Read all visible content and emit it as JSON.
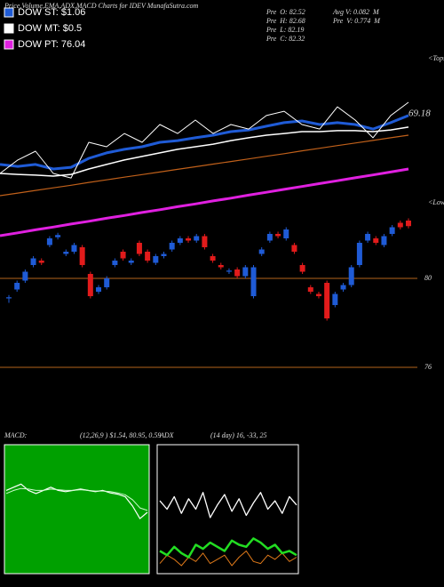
{
  "title": "Price,Volume,EMA,ADX,MACD Charts for IDEV MunafaSutra.com",
  "legend": [
    {
      "label": "DOW ST: $1.06",
      "color": "#1f5bd6"
    },
    {
      "label": "DOW MT: $0.5",
      "color": "#ffffff"
    },
    {
      "label": "DOW PT: 76.04",
      "color": "#e020e0"
    }
  ],
  "info": [
    "Pre  O: 82.52",
    "Pre  H: 82.68",
    "Pre  L: 82.19",
    "Pre  C: 82.32",
    "Avg V: 0.082  M",
    "Pre  V: 0.774  M"
  ],
  "chart_data": [
    {
      "type": "line",
      "ylim": [
        0,
        100
      ],
      "annotations": [
        "<Tops",
        "<Lows",
        "69.18"
      ],
      "series": [
        {
          "color": "#e020e0",
          "width": 3,
          "values": [
            2.4,
            3.9,
            5.5,
            7,
            8.6,
            10.1,
            11.7,
            13.2,
            14.8,
            16.3,
            17.9,
            19.4,
            21,
            22.5,
            24.1,
            25.6,
            27.2,
            28.7,
            30.3,
            31.8,
            33.4,
            34.9,
            36.5,
            38.1
          ]
        },
        {
          "color": "#c0601a",
          "width": 1.2,
          "values": [
            23.8,
            25.2,
            26.6,
            28,
            29.4,
            30.9,
            32.3,
            33.7,
            35.1,
            36.5,
            37.9,
            39.3,
            40.7,
            42.1,
            43.5,
            44.9,
            46.3,
            47.8,
            49.2,
            50.6,
            52,
            53.4,
            54.8,
            56.2
          ]
        },
        {
          "color": "#ffffff",
          "width": 1.5,
          "values": [
            35.7,
            35.2,
            34.8,
            34.3,
            35.2,
            38.1,
            40.5,
            42.9,
            44.8,
            46.7,
            48.6,
            50,
            51.4,
            53.3,
            54.8,
            56.2,
            57.1,
            58.1,
            58.1,
            58.6,
            58.6,
            58.1,
            59,
            60.5
          ]
        },
        {
          "color": "#1f5bd6",
          "width": 3,
          "values": [
            40.5,
            39.5,
            40.5,
            38.1,
            39,
            43.8,
            46.7,
            48.6,
            50,
            52.4,
            53.3,
            54.8,
            56.2,
            58.1,
            59,
            61,
            62.9,
            63.8,
            61.9,
            62.9,
            61.9,
            59.5,
            62.9,
            66.7
          ]
        },
        {
          "color": "#ffffff",
          "width": 1,
          "values": [
            35.7,
            42.9,
            47.6,
            35.7,
            33.3,
            52.4,
            50,
            57.1,
            52.4,
            61.9,
            57.1,
            64.3,
            57.1,
            61.9,
            59.5,
            66.7,
            69,
            61.9,
            59.5,
            71.4,
            64.3,
            54.8,
            66.7,
            73.8
          ]
        }
      ]
    },
    {
      "type": "candlestick",
      "ylim": [
        75.32,
        83.32
      ],
      "yticks": [
        80,
        76
      ],
      "tick_color": "#b5651d",
      "up_color": "#1f5bd6",
      "down_color": "#e21b1b",
      "open": [
        79.1,
        79.5,
        79.9,
        80.6,
        80.8,
        81.5,
        81.85,
        81.1,
        81.2,
        81.4,
        80.2,
        79.4,
        79.6,
        80.6,
        81.2,
        80.7,
        81.6,
        81.2,
        80.7,
        81.0,
        81.3,
        81.6,
        81.8,
        81.7,
        81.9,
        81.0,
        80.6,
        80.3,
        80.4,
        80.1,
        79.2,
        81.1,
        81.7,
        82.0,
        81.8,
        81.5,
        80.6,
        79.6,
        79.3,
        79.8,
        78.8,
        79.5,
        79.7,
        80.6,
        81.7,
        81.8,
        81.5,
        82.0,
        82.5,
        82.6
      ],
      "high": [
        79.25,
        79.9,
        80.4,
        81.0,
        80.9,
        81.9,
        82.05,
        81.3,
        81.6,
        81.5,
        80.3,
        79.7,
        80.1,
        80.9,
        81.3,
        80.9,
        81.7,
        81.3,
        81.1,
        81.2,
        81.7,
        81.9,
        81.9,
        82.0,
        82.0,
        81.1,
        80.7,
        80.45,
        80.5,
        80.6,
        80.6,
        81.4,
        82.1,
        82.1,
        82.3,
        81.6,
        80.7,
        79.7,
        79.4,
        79.9,
        79.4,
        79.8,
        80.6,
        81.7,
        82.1,
        81.9,
        82.0,
        82.4,
        82.6,
        82.7
      ],
      "low": [
        78.9,
        79.4,
        79.8,
        80.5,
        80.6,
        81.4,
        81.75,
        81.0,
        81.1,
        80.5,
        79.1,
        79.3,
        79.5,
        80.5,
        80.8,
        80.6,
        81.0,
        80.7,
        80.6,
        80.9,
        81.2,
        81.5,
        81.6,
        81.6,
        81.3,
        80.7,
        80.4,
        80.2,
        80.0,
        80.0,
        79.1,
        81.0,
        81.6,
        81.8,
        81.7,
        81.1,
        80.2,
        79.3,
        79.1,
        78.1,
        78.7,
        79.4,
        79.6,
        80.5,
        81.6,
        81.5,
        81.4,
        81.9,
        82.2,
        82.25
      ],
      "close": [
        79.15,
        79.8,
        80.3,
        80.9,
        80.7,
        81.8,
        81.95,
        81.2,
        81.5,
        80.6,
        79.2,
        79.6,
        80.0,
        80.8,
        80.9,
        80.8,
        81.1,
        80.8,
        81.0,
        81.1,
        81.6,
        81.8,
        81.7,
        81.9,
        81.4,
        80.8,
        80.5,
        80.35,
        80.1,
        80.5,
        80.5,
        81.3,
        82.0,
        81.9,
        82.2,
        81.2,
        80.3,
        79.4,
        79.2,
        78.2,
        79.3,
        79.7,
        80.5,
        81.6,
        82.0,
        81.6,
        81.9,
        82.3,
        82.3,
        82.35
      ]
    },
    {
      "type": "line",
      "label": "MACD:",
      "params": "(12,26,9 ) $1.54, 80.95, 0.59",
      "background": "#00a000",
      "ylim": [
        -1,
        1
      ],
      "series": [
        {
          "color": "#ffffff",
          "width": 1.2,
          "values": [
            0.3,
            0.35,
            0.4,
            0.3,
            0.25,
            0.3,
            0.35,
            0.3,
            0.28,
            0.3,
            0.32,
            0.3,
            0.28,
            0.3,
            0.26,
            0.24,
            0.2,
            0.05,
            -0.15,
            -0.05
          ]
        },
        {
          "color": "#d0ffd0",
          "width": 1,
          "values": [
            0.25,
            0.3,
            0.33,
            0.32,
            0.3,
            0.3,
            0.32,
            0.31,
            0.3,
            0.3,
            0.31,
            0.3,
            0.29,
            0.29,
            0.28,
            0.26,
            0.23,
            0.15,
            0.02,
            -0.02
          ]
        }
      ]
    },
    {
      "type": "line",
      "label": "ADX",
      "params": "(14 day) 16, -33, 25",
      "background": "#000000",
      "ylim": [
        0,
        60
      ],
      "series": [
        {
          "color": "#ffffff",
          "width": 1.3,
          "values": [
            34,
            30,
            36,
            28,
            35,
            30,
            38,
            26,
            32,
            37,
            29,
            35,
            27,
            33,
            38,
            30,
            34,
            28,
            36,
            32
          ]
        },
        {
          "color": "#e07a1a",
          "width": 1,
          "values": [
            4,
            8,
            6,
            3,
            7,
            5,
            9,
            4,
            6,
            8,
            3,
            7,
            10,
            5,
            4,
            8,
            6,
            9,
            5,
            7
          ]
        },
        {
          "color": "#22dd22",
          "width": 2.5,
          "values": [
            10,
            8,
            12,
            9,
            7,
            13,
            11,
            14,
            12,
            10,
            15,
            13,
            12,
            16,
            14,
            11,
            13,
            9,
            10,
            8
          ]
        }
      ]
    }
  ]
}
